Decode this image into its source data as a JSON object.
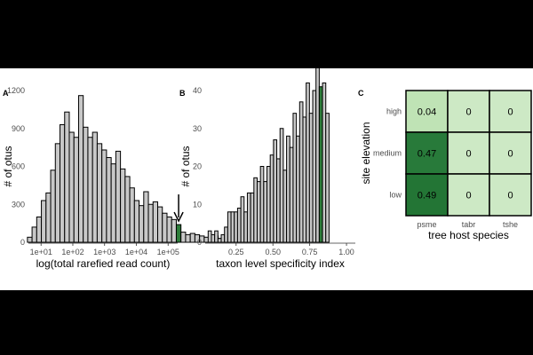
{
  "chart_data": [
    {
      "panel": "A",
      "type": "bar",
      "xlabel": "log(total rarefied read count)",
      "ylabel": "# of otus",
      "xscale": "log10",
      "xlim": [
        4,
        200000
      ],
      "ylim": [
        0,
        1200
      ],
      "yticks": [
        0,
        300,
        600,
        900,
        1200
      ],
      "xticks": [
        {
          "value": 10,
          "label": "1e+01"
        },
        {
          "value": 100,
          "label": "1e+02"
        },
        {
          "value": 1000,
          "label": "1e+03"
        },
        {
          "value": 10000,
          "label": "1e+04"
        },
        {
          "value": 100000,
          "label": "1e+05"
        }
      ],
      "bin_log_width": 0.1465,
      "bins_start_log10": 0.57,
      "values": [
        40,
        120,
        200,
        330,
        390,
        570,
        780,
        930,
        1030,
        870,
        830,
        1160,
        910,
        830,
        870,
        780,
        730,
        670,
        620,
        720,
        580,
        520,
        430,
        330,
        290,
        400,
        300,
        320,
        280,
        230,
        200,
        180,
        140,
        80,
        60,
        70,
        60,
        50,
        40,
        60,
        50,
        30,
        30,
        20
      ],
      "highlight_bins": [
        32
      ],
      "highlight_color": "#2d7d3a",
      "bar_color": "#c8c8c8",
      "annotation": "down-arrow over the highlighted bin near 1e+04"
    },
    {
      "panel": "B",
      "type": "bar",
      "xlabel": "taxon level specificity index",
      "ylabel": "# of otus",
      "xlim": [
        0.04,
        1.06
      ],
      "ylim": [
        0,
        40
      ],
      "yticks": [
        0,
        10,
        20,
        30,
        40
      ],
      "xticks": [
        {
          "value": 0.25,
          "label": "0.25"
        },
        {
          "value": 0.5,
          "label": "0.50"
        },
        {
          "value": 0.75,
          "label": "0.75"
        },
        {
          "value": 1.0,
          "label": "1.00"
        }
      ],
      "bin_width": 0.0222,
      "bins_start": 0.06,
      "values": [
        3,
        2,
        3,
        1,
        2,
        4,
        8,
        8,
        8,
        9,
        12,
        8,
        13,
        13,
        17,
        16,
        20,
        16,
        20,
        23,
        27,
        22,
        30,
        19,
        28,
        25,
        34,
        28,
        37,
        33,
        42,
        34,
        40,
        47,
        41,
        42,
        34
      ],
      "highlight_bins": [
        34
      ],
      "highlight_color": "#2d7d3a",
      "bar_color": "#c8c8c8"
    },
    {
      "panel": "C",
      "type": "heatmap",
      "xlabel": "tree host species",
      "ylabel": "site elevation",
      "x_categories": [
        "psme",
        "tabr",
        "tshe"
      ],
      "y_categories": [
        "high",
        "medium",
        "low"
      ],
      "cells": [
        [
          "0.04",
          "0",
          "0"
        ],
        [
          "0.47",
          "0",
          "0"
        ],
        [
          "0.49",
          "0",
          "0"
        ]
      ],
      "colors": [
        [
          "#bfe3b5",
          "#cde9c5",
          "#cde9c5"
        ],
        [
          "#287a3a",
          "#cde9c5",
          "#cde9c5"
        ],
        [
          "#237535",
          "#cde9c5",
          "#cde9c5"
        ]
      ]
    }
  ]
}
